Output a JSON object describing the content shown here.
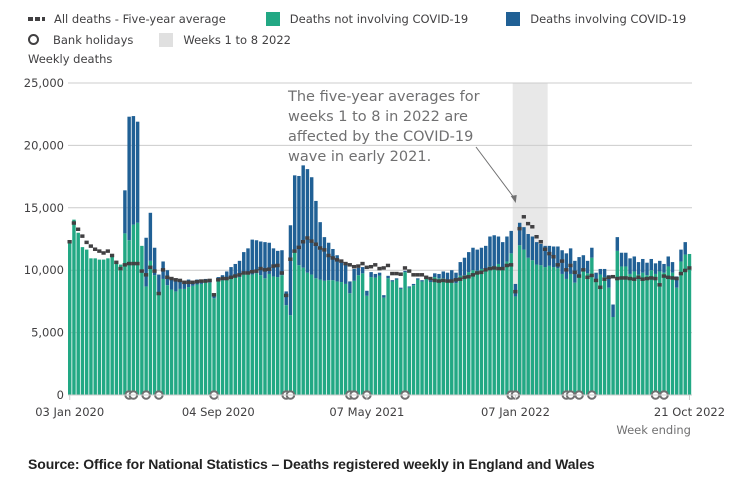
{
  "legend": {
    "row1": [
      {
        "label": "All deaths - Five-year average",
        "type": "dash",
        "color": "#414042"
      },
      {
        "label": "Deaths not involving COVID-19",
        "type": "box",
        "color": "#22a884"
      },
      {
        "label": "Deaths involving COVID-19",
        "type": "box",
        "color": "#206095"
      }
    ],
    "row2": [
      {
        "label": "Bank holidays",
        "type": "circle",
        "color": "#414042"
      },
      {
        "label": "Weeks 1 to 8 2022",
        "type": "box",
        "color": "#e0e0e0"
      }
    ]
  },
  "source": "Source: Office for National Statistics – Deaths registered weekly in England and Wales",
  "chart_data": {
    "type": "bar",
    "stacked": true,
    "title": "",
    "ylabel": "Weekly deaths",
    "xlabel": "Week ending",
    "ylim": [
      0,
      25000
    ],
    "yticks": [
      0,
      5000,
      10000,
      15000,
      20000,
      25000
    ],
    "ytick_labels": [
      "0",
      "5,000",
      "10,000",
      "15,000",
      "20,000",
      "25,000"
    ],
    "xtick_labels": [
      {
        "label": "03 Jan 2020",
        "week_index": 0
      },
      {
        "label": "04 Sep 2020",
        "week_index": 35
      },
      {
        "label": "07 May 2021",
        "week_index": 70
      },
      {
        "label": "07 Jan 2022",
        "week_index": 105
      },
      {
        "label": "21 Oct 2022",
        "week_index": 146
      }
    ],
    "grid": true,
    "legend_position": "top",
    "colors": {
      "non_covid": "#22a884",
      "covid": "#206095",
      "average": "#414042",
      "highlight": "#e8e8e8",
      "bank_holiday": "#707071"
    },
    "highlight": {
      "label": "Weeks 1 to 8 2022",
      "start_week_index": 105,
      "end_week_index": 112
    },
    "annotation": {
      "lines": [
        "The five-year averages for",
        "weeks 1 to 8 in 2022 are",
        "affected by the COVID-19",
        "wave in early 2021."
      ],
      "points_to_week_index": 105
    },
    "bank_holiday_week_indices": [
      14,
      15,
      18,
      21,
      34,
      51,
      52,
      66,
      67,
      70,
      79,
      104,
      105,
      117,
      118,
      120,
      123,
      138,
      140
    ],
    "series": [
      {
        "name": "Deaths not involving COVID-19",
        "values": [
          12250,
          14050,
          13000,
          11850,
          11650,
          10950,
          10950,
          10850,
          10850,
          10950,
          11200,
          10600,
          10450,
          12950,
          12400,
          13650,
          13800,
          11950,
          8700,
          10750,
          9600,
          8100,
          9300,
          8800,
          8450,
          8300,
          8500,
          8500,
          8650,
          8750,
          8850,
          8900,
          9050,
          9000,
          7750,
          9250,
          9200,
          9350,
          9400,
          9500,
          9450,
          9650,
          9650,
          9650,
          9750,
          9600,
          9350,
          9700,
          9500,
          9450,
          9600,
          7200,
          6400,
          11500,
          10400,
          10200,
          9800,
          9650,
          9350,
          9250,
          9150,
          9200,
          9200,
          9100,
          9050,
          8900,
          8150,
          9150,
          9600,
          9750,
          7950,
          9450,
          9400,
          9550,
          7800,
          9350,
          9100,
          9250,
          8500,
          9850,
          8600,
          8800,
          9250,
          9100,
          9350,
          9050,
          9450,
          9350,
          9350,
          9200,
          9100,
          8950,
          9550,
          9600,
          9850,
          10000,
          9950,
          10100,
          9950,
          10300,
          10300,
          10500,
          10250,
          10700,
          11350,
          7900,
          12000,
          11650,
          11000,
          10800,
          10450,
          10400,
          10250,
          10350,
          10250,
          10150,
          9700,
          9300,
          9700,
          9000,
          9500,
          9950,
          9750,
          11000,
          9200,
          9650,
          9450,
          8600,
          6250,
          11550,
          10300,
          10300,
          9700,
          9900,
          9650,
          9800,
          9600,
          10000,
          9700,
          9900,
          9800,
          10300,
          9800,
          8600,
          10700,
          11250,
          11300
        ],
        "value_unit": "weekly deaths"
      },
      {
        "name": "Deaths involving COVID-19",
        "values": [
          0,
          0,
          0,
          0,
          0,
          0,
          0,
          0,
          0,
          0,
          0,
          0,
          0,
          3450,
          9900,
          8700,
          8100,
          0,
          3900,
          3850,
          2200,
          1550,
          1400,
          1200,
          1000,
          900,
          750,
          600,
          600,
          400,
          400,
          300,
          250,
          200,
          150,
          200,
          400,
          550,
          850,
          1000,
          1300,
          1800,
          2100,
          2800,
          2650,
          2700,
          2900,
          2500,
          2250,
          2100,
          2000,
          1100,
          7200,
          6100,
          7150,
          8200,
          8300,
          7800,
          6200,
          4600,
          3500,
          3000,
          2500,
          2100,
          1700,
          1600,
          950,
          950,
          600,
          500,
          400,
          400,
          300,
          250,
          200,
          200,
          100,
          100,
          100,
          100,
          100,
          100,
          100,
          100,
          200,
          150,
          300,
          350,
          550,
          600,
          900,
          850,
          1100,
          1400,
          1600,
          1800,
          1700,
          1700,
          2000,
          2400,
          2500,
          2200,
          2000,
          2000,
          1800,
          1000,
          1800,
          1800,
          1900,
          1900,
          1800,
          1700,
          1700,
          1600,
          1650,
          1750,
          1900,
          2050,
          2050,
          1750,
          1550,
          1250,
          1000,
          800,
          600,
          450,
          650,
          1000,
          1000,
          1100,
          1100,
          1100,
          1250,
          1200,
          1000,
          1100,
          1000,
          900,
          850,
          850,
          700,
          800,
          850,
          900,
          950,
          1000
        ],
        "value_unit": "weekly deaths"
      },
      {
        "name": "All deaths - Five-year average",
        "values": [
          12300,
          13800,
          13300,
          12750,
          12250,
          11950,
          11700,
          11550,
          11400,
          11550,
          11200,
          10650,
          10150,
          10450,
          10550,
          10550,
          10550,
          9950,
          9650,
          10250,
          9950,
          8150,
          10050,
          9450,
          9350,
          9250,
          9200,
          9050,
          9050,
          9050,
          9100,
          9150,
          9150,
          9200,
          8050,
          9250,
          9350,
          9350,
          9450,
          9550,
          9650,
          9800,
          9800,
          9900,
          9950,
          10150,
          10050,
          10100,
          10350,
          10400,
          9800,
          8000,
          10900,
          11550,
          11850,
          12300,
          12600,
          12350,
          12100,
          11800,
          11650,
          11200,
          11000,
          10850,
          10750,
          10550,
          10450,
          10300,
          10350,
          10550,
          10250,
          10300,
          10450,
          10150,
          10200,
          10400,
          9750,
          9750,
          9700,
          10200,
          9950,
          9650,
          9650,
          9650,
          9450,
          9350,
          9200,
          9150,
          9200,
          9150,
          9150,
          9250,
          9300,
          9450,
          9500,
          9650,
          9800,
          9850,
          10050,
          10150,
          10200,
          10150,
          10150,
          10400,
          10450,
          8300,
          13350,
          14300,
          13750,
          13500,
          12700,
          12300,
          11700,
          11350,
          11100,
          10450,
          10750,
          10050,
          10400,
          9850,
          9550,
          10050,
          9450,
          9600,
          9200,
          8650,
          9300,
          9450,
          9500,
          9350,
          9400,
          9400,
          9350,
          9300,
          9450,
          9300,
          9350,
          9400,
          9350,
          8850,
          9550,
          9450,
          9400,
          9350,
          9750,
          10000,
          10200
        ],
        "value_unit": "weekly deaths"
      }
    ]
  }
}
